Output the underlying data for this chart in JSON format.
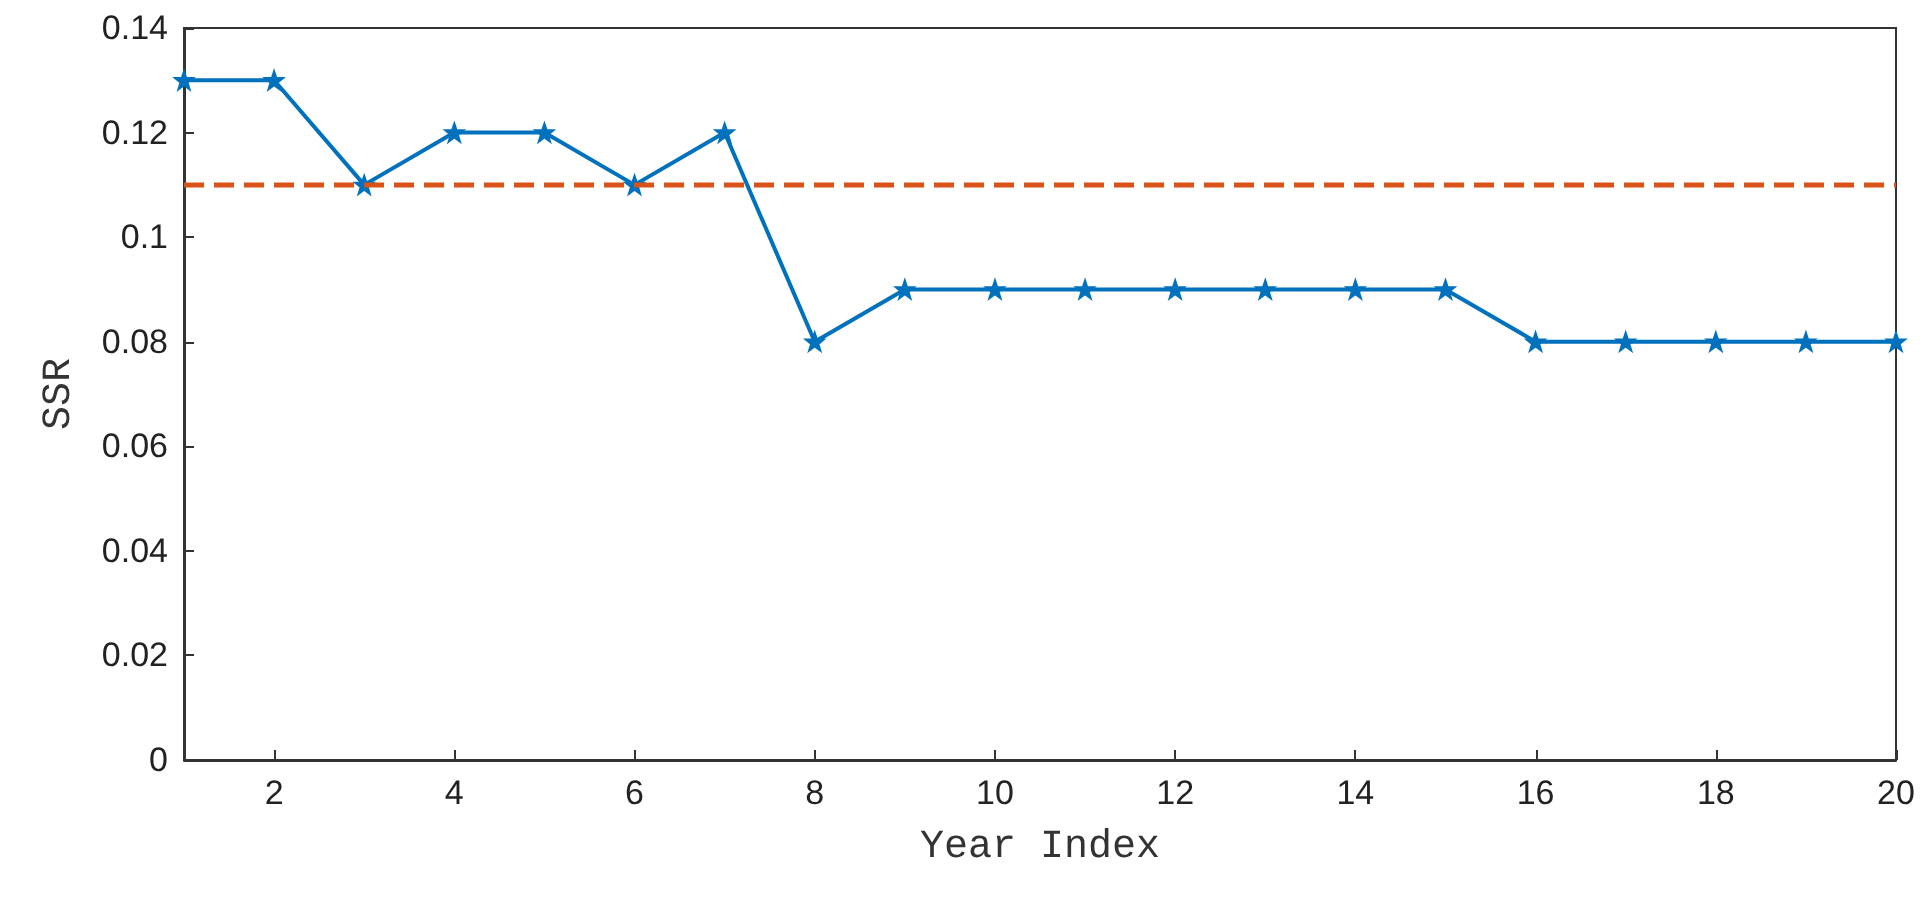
{
  "chart_data": {
    "type": "line",
    "xlabel": "Year Index",
    "ylabel": "SSR",
    "x": [
      1,
      2,
      3,
      4,
      5,
      6,
      7,
      8,
      9,
      10,
      11,
      12,
      13,
      14,
      15,
      16,
      17,
      18,
      19,
      20
    ],
    "series": [
      {
        "color": "#0072bd",
        "values": [
          0.13,
          0.13,
          0.11,
          0.12,
          0.12,
          0.11,
          0.12,
          0.08,
          0.09,
          0.09,
          0.09,
          0.09,
          0.09,
          0.09,
          0.09,
          0.08,
          0.08,
          0.08,
          0.08,
          0.08
        ]
      }
    ],
    "xlim": [
      1,
      20
    ],
    "xticks": [
      2,
      4,
      6,
      8,
      10,
      12,
      14,
      16,
      18,
      20
    ],
    "ylim": [
      0,
      0.14
    ],
    "yticks": [
      0,
      0.02,
      0.04,
      0.06,
      0.08,
      0.1,
      0.12,
      0.14
    ],
    "ref_lines": [
      {
        "axis": "y",
        "value": 0.11,
        "color": "#d95319",
        "line_style": "dashed"
      }
    ],
    "marker": "star",
    "line_style": "solid",
    "grid": false
  }
}
